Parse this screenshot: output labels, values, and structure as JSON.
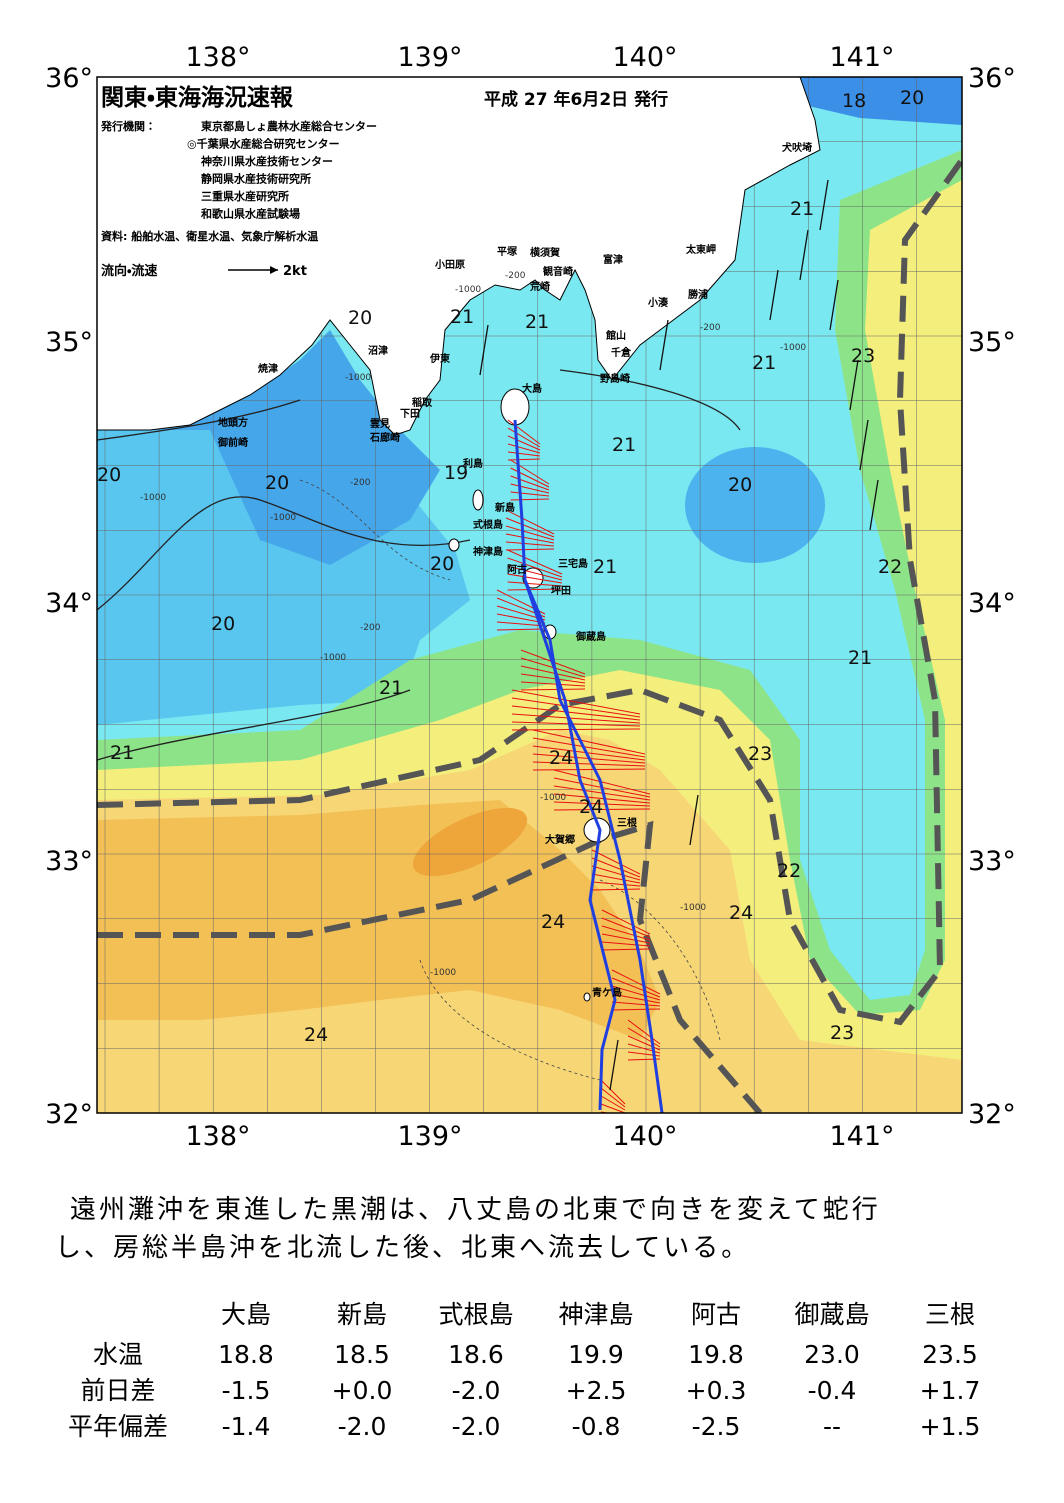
{
  "header": {
    "title": "関東・東海海況速報",
    "date": "平成 27 年6月2日 発行",
    "issuer_label": "発行機関：",
    "issuers": [
      "東京都島しょ農林水産総合センター",
      "◎千葉県水産総合研究センター",
      "神奈川県水産技術センター",
      "静岡県水産技術研究所",
      "三重県水産研究所",
      "和歌山県水産試験場"
    ],
    "source": "資料: 船舶水温、衛星水温、気象庁解析水温",
    "legend_label": "流向・流速",
    "legend_speed": "2kt"
  },
  "axes": {
    "lon_top": [
      "138°",
      "139°",
      "140°",
      "141°"
    ],
    "lon_bottom": [
      "138°",
      "139°",
      "140°",
      "141°"
    ],
    "lat_left": [
      "36°",
      "35°",
      "34°",
      "33°",
      "32°"
    ],
    "lat_right": [
      "36°",
      "35°",
      "34°",
      "33°",
      "32°"
    ]
  },
  "places": [
    "犬吠埼",
    "太東岬",
    "勝浦",
    "小湊",
    "富津",
    "館山",
    "千倉",
    "野島崎",
    "観音崎",
    "荒崎",
    "横須賀",
    "平塚",
    "小田原",
    "沼津",
    "伊東",
    "稲取",
    "下田",
    "雲見",
    "石廊崎",
    "焼津",
    "地頭方",
    "御前崎",
    "大島",
    "利島",
    "新島",
    "式根島",
    "神津島",
    "三宅島",
    "阿古",
    "坪田",
    "御蔵島",
    "大賀郷",
    "三根",
    "青ケ島"
  ],
  "temperature_labels": [
    "18",
    "20",
    "21",
    "21",
    "21",
    "20",
    "21",
    "23",
    "21",
    "20",
    "20",
    "20",
    "19",
    "20",
    "21",
    "22",
    "20",
    "21",
    "21",
    "21",
    "24",
    "23",
    "24",
    "22",
    "24",
    "24",
    "24",
    "23"
  ],
  "depth_labels": [
    "-200",
    "-1000",
    "-200",
    "-1000",
    "-1000",
    "-200",
    "-1000",
    "-1000",
    "-1000",
    "-200",
    "-1000",
    "-1000",
    "-1000"
  ],
  "description": [
    "遠州灘沖を東進した黒潮は、八丈島の北東で向きを変えて蛇行",
    "し、房総半島沖を北流した後、北東へ流去している。"
  ],
  "table": {
    "columns": [
      "大島",
      "新島",
      "式根島",
      "神津島",
      "阿古",
      "御蔵島",
      "三根"
    ],
    "rows": [
      {
        "label": "水温",
        "values": [
          "18.8",
          "18.5",
          "18.6",
          "19.9",
          "19.8",
          "23.0",
          "23.5"
        ]
      },
      {
        "label": "前日差",
        "values": [
          "-1.5",
          "+0.0",
          "-2.0",
          "+2.5",
          "+0.3",
          "-0.4",
          "+1.7"
        ]
      },
      {
        "label": "平年偏差",
        "values": [
          "-1.4",
          "-2.0",
          "-2.0",
          "-0.8",
          "-2.5",
          "--",
          "+1.5"
        ]
      }
    ]
  }
}
